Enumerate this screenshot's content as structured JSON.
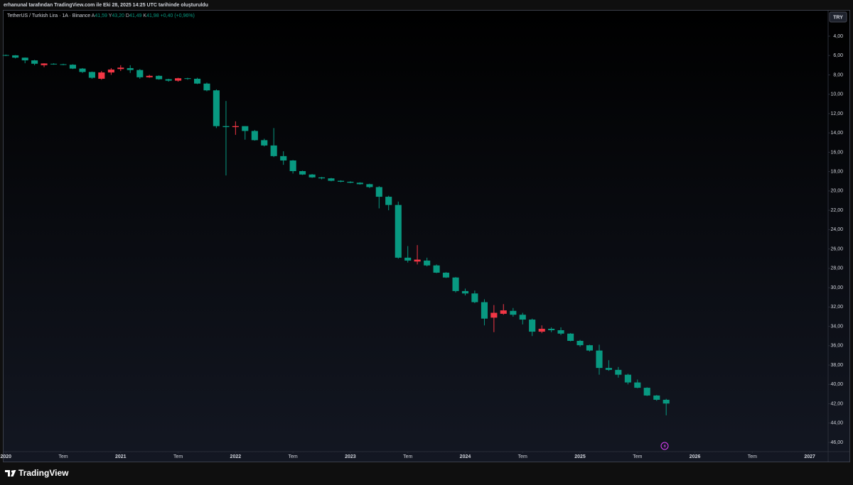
{
  "header": "erhanunal tarafından TradingView.com ile Eki 28, 2025 14:25 UTC tarihinde oluşturuldu",
  "footer": {
    "brand": "TradingView"
  },
  "chart_data": {
    "type": "candlestick",
    "legend": {
      "symbol": "TetherUS / Turkish Lira · 1A · Binance",
      "items": [
        {
          "key": "A",
          "value": "41,59"
        },
        {
          "key": "Y",
          "value": "43,20"
        },
        {
          "key": "D",
          "value": "41,49"
        },
        {
          "key": "K",
          "value": "41,98"
        }
      ],
      "change": "+0,40 (+0,96%)"
    },
    "currency": "TRY",
    "up_color": "#089981",
    "down_color": "#f23645",
    "y_inverted": true,
    "x": [
      2020,
      2020.083,
      2020.167,
      2020.25,
      2020.333,
      2020.417,
      2020.5,
      2020.583,
      2020.667,
      2020.75,
      2020.833,
      2020.917,
      2021,
      2021.083,
      2021.167,
      2021.25,
      2021.333,
      2021.417,
      2021.5,
      2021.583,
      2021.667,
      2021.75,
      2021.833,
      2021.917,
      2022,
      2022.083,
      2022.167,
      2022.25,
      2022.333,
      2022.417,
      2022.5,
      2022.583,
      2022.667,
      2022.75,
      2022.833,
      2022.917,
      2023,
      2023.083,
      2023.167,
      2023.25,
      2023.333,
      2023.417,
      2023.5,
      2023.583,
      2023.667,
      2023.75,
      2023.833,
      2023.917,
      2024,
      2024.083,
      2024.167,
      2024.25,
      2024.333,
      2024.417,
      2024.5,
      2024.583,
      2024.667,
      2024.75,
      2024.833,
      2024.917,
      2025,
      2025.083,
      2025.167,
      2025.25,
      2025.333,
      2025.417,
      2025.5,
      2025.583,
      2025.667,
      2025.75
    ],
    "open": [
      5.95,
      5.98,
      6.22,
      6.5,
      7.0,
      6.85,
      6.9,
      6.95,
      7.35,
      7.7,
      8.4,
      7.75,
      7.4,
      7.3,
      7.5,
      8.25,
      8.1,
      8.45,
      8.6,
      8.35,
      8.4,
      8.9,
      9.6,
      13.3,
      13.4,
      13.3,
      13.8,
      14.75,
      15.3,
      16.4,
      16.85,
      17.95,
      18.3,
      18.6,
      18.7,
      18.95,
      19.05,
      19.15,
      19.3,
      19.6,
      20.6,
      21.45,
      26.9,
      27.3,
      27.2,
      27.7,
      28.45,
      28.95,
      30.35,
      30.6,
      31.5,
      33.1,
      32.7,
      32.4,
      32.8,
      33.3,
      34.55,
      34.25,
      34.4,
      34.75,
      35.5,
      35.95,
      36.5,
      38.3,
      38.5,
      39.0,
      39.8,
      40.35,
      41.15,
      41.59
    ],
    "high": [
      6.05,
      6.3,
      6.8,
      7.0,
      7.2,
      6.95,
      7.0,
      7.4,
      7.8,
      8.4,
      8.5,
      8.0,
      7.6,
      7.8,
      8.4,
      8.3,
      8.5,
      8.7,
      8.7,
      8.5,
      8.95,
      9.7,
      13.5,
      18.4,
      14.2,
      14.7,
      14.8,
      15.4,
      16.5,
      17.3,
      18.2,
      18.35,
      18.65,
      18.8,
      19.0,
      19.1,
      19.2,
      19.35,
      19.7,
      21.8,
      22.0,
      27.0,
      27.4,
      27.6,
      27.8,
      28.5,
      29.0,
      30.5,
      30.8,
      31.6,
      33.9,
      34.6,
      32.8,
      33.0,
      33.8,
      35.0,
      34.7,
      34.6,
      34.9,
      35.55,
      36.1,
      36.6,
      39.0,
      38.6,
      39.3,
      40.0,
      40.4,
      41.2,
      41.7,
      43.2
    ],
    "low": [
      5.9,
      5.95,
      6.2,
      6.45,
      6.8,
      6.8,
      6.85,
      6.9,
      7.3,
      7.65,
      7.6,
      7.3,
      7.0,
      7.0,
      7.4,
      8.0,
      8.05,
      8.4,
      8.3,
      8.3,
      8.3,
      8.8,
      9.5,
      10.7,
      12.8,
      13.3,
      13.7,
      14.6,
      13.5,
      15.9,
      16.8,
      17.9,
      18.25,
      18.55,
      18.65,
      18.9,
      19.0,
      19.1,
      19.25,
      19.5,
      20.5,
      21.1,
      25.7,
      25.6,
      26.9,
      27.6,
      28.4,
      28.9,
      30.1,
      30.3,
      31.2,
      31.8,
      31.7,
      32.1,
      32.6,
      33.2,
      33.9,
      34.1,
      34.1,
      34.7,
      35.4,
      35.9,
      35.9,
      37.5,
      38.2,
      38.9,
      39.5,
      40.3,
      41.1,
      41.49
    ],
    "close": [
      5.98,
      6.22,
      6.5,
      6.85,
      6.82,
      6.9,
      6.95,
      7.35,
      7.7,
      8.3,
      7.75,
      7.45,
      7.25,
      7.5,
      8.25,
      8.1,
      8.45,
      8.6,
      8.35,
      8.4,
      8.9,
      9.6,
      13.3,
      13.4,
      13.3,
      13.8,
      14.75,
      15.3,
      16.4,
      16.85,
      17.95,
      18.3,
      18.6,
      18.7,
      18.95,
      19.05,
      19.15,
      19.3,
      19.6,
      20.6,
      21.45,
      26.9,
      27.2,
      27.1,
      27.7,
      28.45,
      28.95,
      30.35,
      30.6,
      31.5,
      33.2,
      32.6,
      32.35,
      32.8,
      33.3,
      34.55,
      34.25,
      34.4,
      34.75,
      35.5,
      35.95,
      36.5,
      38.3,
      38.5,
      39.0,
      39.8,
      40.35,
      41.15,
      41.59,
      41.98
    ],
    "xlim": [
      2019.98,
      2027.16
    ],
    "xticks": [
      2020,
      {
        "value": 2020.5,
        "label": "Tem"
      },
      2021,
      {
        "value": 2021.5,
        "label": "Tem"
      },
      2022,
      {
        "value": 2022.5,
        "label": "Tem"
      },
      2023,
      {
        "value": 2023.5,
        "label": "Tem"
      },
      2024,
      {
        "value": 2024.5,
        "label": "Tem"
      },
      2025,
      {
        "value": 2025.5,
        "label": "Tem"
      },
      2026,
      {
        "value": 2026.5,
        "label": "Tem"
      },
      2027
    ],
    "ylim": [
      1.36,
      47.98
    ],
    "yticks": [
      {
        "value": 4,
        "label": "4,00"
      },
      {
        "value": 6,
        "label": "6,00"
      },
      {
        "value": 8,
        "label": "8,00"
      },
      {
        "value": 10,
        "label": "10,00"
      },
      {
        "value": 12,
        "label": "12,00"
      },
      {
        "value": 14,
        "label": "14,00"
      },
      {
        "value": 16,
        "label": "16,00"
      },
      {
        "value": 18,
        "label": "18,00"
      },
      {
        "value": 20,
        "label": "20,00"
      },
      {
        "value": 22,
        "label": "22,00"
      },
      {
        "value": 24,
        "label": "24,00"
      },
      {
        "value": 26,
        "label": "26,00"
      },
      {
        "value": 28,
        "label": "28,00"
      },
      {
        "value": 30,
        "label": "30,00"
      },
      {
        "value": 32,
        "label": "32,00"
      },
      {
        "value": 34,
        "label": "34,00"
      },
      {
        "value": 36,
        "label": "36,00"
      },
      {
        "value": 38,
        "label": "38,00"
      },
      {
        "value": 40,
        "label": "40,00"
      },
      {
        "value": 42,
        "label": "42,00"
      },
      {
        "value": 44,
        "label": "44,00"
      },
      {
        "value": 46,
        "label": "46,00"
      }
    ],
    "grid": false
  }
}
